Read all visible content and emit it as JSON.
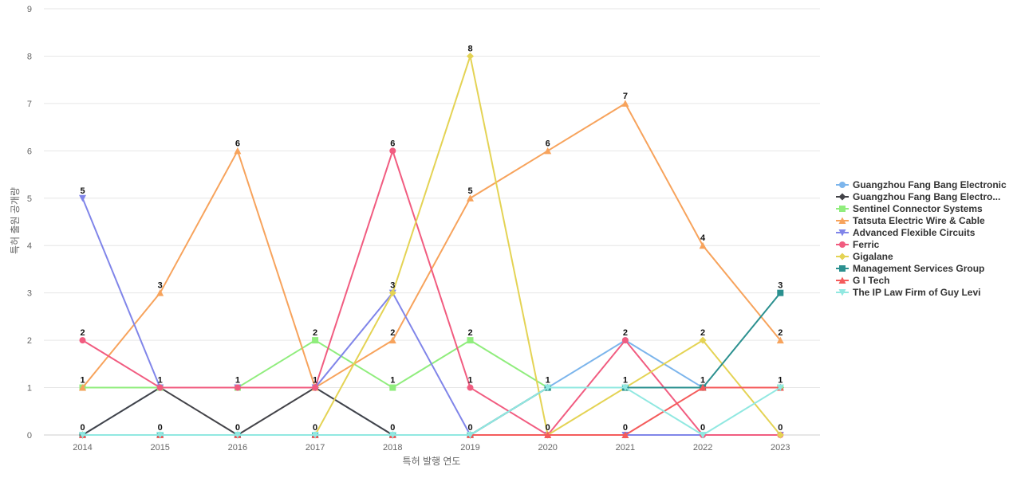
{
  "chart_data": {
    "type": "line",
    "title": "",
    "xlabel": "특허 발행 연도",
    "ylabel": "특허 출원 공개량",
    "x": [
      "2014",
      "2015",
      "2016",
      "2017",
      "2018",
      "2019",
      "2020",
      "2021",
      "2022",
      "2023"
    ],
    "ylim": [
      0,
      9
    ],
    "yticks": [
      0,
      1,
      2,
      3,
      4,
      5,
      6,
      7,
      8,
      9
    ],
    "grid": true,
    "legend_position": "right",
    "series": [
      {
        "name": "Guangzhou Fang Bang Electronic",
        "color": "#7cb5ec",
        "marker": "circle",
        "values": [
          0,
          1,
          1,
          1,
          0,
          0,
          1,
          2,
          1,
          1
        ]
      },
      {
        "name": "Guangzhou Fang Bang Electro...",
        "color": "#434348",
        "marker": "diamond",
        "values": [
          0,
          1,
          0,
          1,
          0,
          0,
          1,
          1,
          1,
          1
        ]
      },
      {
        "name": "Sentinel Connector Systems",
        "color": "#90ed7d",
        "marker": "square",
        "values": [
          1,
          1,
          1,
          2,
          1,
          2,
          1,
          1,
          1,
          1
        ]
      },
      {
        "name": "Tatsuta Electric Wire & Cable",
        "color": "#f7a35c",
        "marker": "triangle",
        "values": [
          1,
          3,
          6,
          1,
          2,
          5,
          6,
          7,
          4,
          2
        ]
      },
      {
        "name": "Advanced Flexible Circuits",
        "color": "#8085e9",
        "marker": "triangle-down",
        "values": [
          5,
          1,
          1,
          1,
          3,
          0,
          0,
          0,
          0,
          0
        ]
      },
      {
        "name": "Ferric",
        "color": "#f15c80",
        "marker": "circle",
        "values": [
          2,
          1,
          1,
          1,
          6,
          1,
          0,
          2,
          0,
          0
        ]
      },
      {
        "name": "Gigalane",
        "color": "#e4d354",
        "marker": "diamond",
        "values": [
          0,
          0,
          0,
          0,
          3,
          8,
          0,
          1,
          2,
          0
        ]
      },
      {
        "name": "Management Services Group",
        "color": "#2b908f",
        "marker": "square",
        "values": [
          0,
          0,
          0,
          0,
          0,
          0,
          1,
          1,
          1,
          3
        ]
      },
      {
        "name": "G I Tech",
        "color": "#f45b5b",
        "marker": "triangle",
        "values": [
          0,
          0,
          0,
          0,
          0,
          0,
          0,
          0,
          1,
          1
        ]
      },
      {
        "name": "The IP Law Firm of Guy Levi",
        "color": "#91e8e1",
        "marker": "triangle-down",
        "values": [
          0,
          0,
          0,
          0,
          0,
          0,
          1,
          1,
          0,
          1
        ]
      }
    ],
    "data_labels": [
      {
        "x": "2014",
        "value": 5
      },
      {
        "x": "2014",
        "value": 2
      },
      {
        "x": "2014",
        "value": 1
      },
      {
        "x": "2014",
        "value": 0
      },
      {
        "x": "2015",
        "value": 3
      },
      {
        "x": "2015",
        "value": 1
      },
      {
        "x": "2015",
        "value": 0
      },
      {
        "x": "2016",
        "value": 6
      },
      {
        "x": "2016",
        "value": 1
      },
      {
        "x": "2016",
        "value": 0
      },
      {
        "x": "2017",
        "value": 2
      },
      {
        "x": "2017",
        "value": 1
      },
      {
        "x": "2017",
        "value": 0
      },
      {
        "x": "2018",
        "value": 6
      },
      {
        "x": "2018",
        "value": 3
      },
      {
        "x": "2018",
        "value": 2
      },
      {
        "x": "2018",
        "value": 1
      },
      {
        "x": "2018",
        "value": 0
      },
      {
        "x": "2019",
        "value": 8
      },
      {
        "x": "2019",
        "value": 5
      },
      {
        "x": "2019",
        "value": 2
      },
      {
        "x": "2019",
        "value": 1
      },
      {
        "x": "2019",
        "value": 0
      },
      {
        "x": "2020",
        "value": 6
      },
      {
        "x": "2020",
        "value": 1
      },
      {
        "x": "2020",
        "value": 0
      },
      {
        "x": "2021",
        "value": 7
      },
      {
        "x": "2021",
        "value": 2
      },
      {
        "x": "2021",
        "value": 1
      },
      {
        "x": "2021",
        "value": 0
      },
      {
        "x": "2022",
        "value": 4
      },
      {
        "x": "2022",
        "value": 2
      },
      {
        "x": "2022",
        "value": 1
      },
      {
        "x": "2022",
        "value": 0
      },
      {
        "x": "2023",
        "value": 3
      },
      {
        "x": "2023",
        "value": 2
      },
      {
        "x": "2023",
        "value": 1
      },
      {
        "x": "2023",
        "value": 0
      }
    ]
  }
}
